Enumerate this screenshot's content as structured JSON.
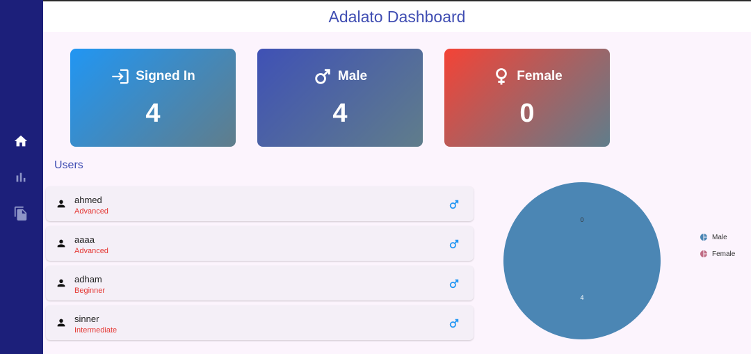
{
  "app": {
    "title": "Adalato Dashboard"
  },
  "sidebar": {
    "items": [
      {
        "icon": "home-icon",
        "active": true
      },
      {
        "icon": "bar-chart-icon",
        "active": false
      },
      {
        "icon": "copy-files-icon",
        "active": false
      }
    ]
  },
  "cards": {
    "signed_in": {
      "label": "Signed In",
      "value": "4",
      "icon": "login-icon",
      "gradient": [
        "#2196f3",
        "#607d8b"
      ]
    },
    "male": {
      "label": "Male",
      "value": "4",
      "icon": "male-icon",
      "gradient": [
        "#3f51b5",
        "#607d8b"
      ]
    },
    "female": {
      "label": "Female",
      "value": "0",
      "icon": "female-icon",
      "gradient": [
        "#f44336",
        "#607d8b"
      ]
    }
  },
  "users": {
    "title": "Users",
    "rows": [
      {
        "name": "ahmed",
        "level": "Advanced",
        "gender": "male"
      },
      {
        "name": "aaaa",
        "level": "Advanced",
        "gender": "male"
      },
      {
        "name": "adham",
        "level": "Beginner",
        "gender": "male"
      },
      {
        "name": "sinner",
        "level": "Intermediate",
        "gender": "male"
      }
    ]
  },
  "chart_data": {
    "type": "pie",
    "categories": [
      "Male",
      "Female"
    ],
    "values": [
      4,
      0
    ],
    "data_labels": [
      "4",
      "0"
    ],
    "colors": [
      "#4b86b4",
      "#c06c84"
    ],
    "legend_position": "right"
  },
  "colors": {
    "sidebar": "#1c1f7a",
    "accent": "#3f4db2",
    "level_text": "#e53935",
    "gender_icon": "#2196f3"
  }
}
